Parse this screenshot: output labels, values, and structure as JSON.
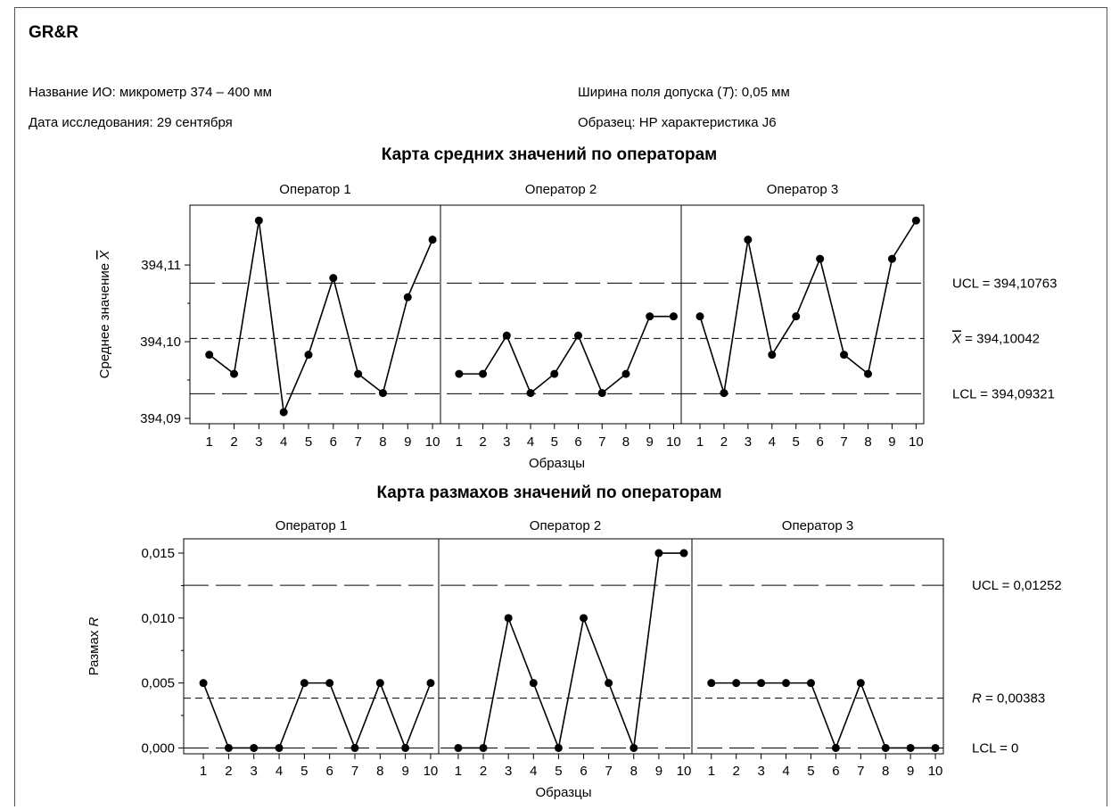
{
  "header": {
    "title": "GR&R",
    "instrument_label": "Название ИО: микрометр 374 – 400 мм",
    "date_label": "Дата исследования: 29 сентября",
    "tolerance_prefix": "Ширина поля допуска (",
    "tolerance_symbol": "T",
    "tolerance_suffix": "): 0,05 мм",
    "sample_label": "Образец: НР характеристика J6"
  },
  "chart_data": [
    {
      "type": "line",
      "title": "Карта средних значений по операторам",
      "ylabel_main": "Среднее значение ",
      "ylabel_symbol": "X",
      "xlabel": "Образцы",
      "panels": [
        "Оператор 1",
        "Оператор 2",
        "Оператор 3"
      ],
      "categories": [
        "1",
        "2",
        "3",
        "4",
        "5",
        "6",
        "7",
        "8",
        "9",
        "10"
      ],
      "y_ticks": [
        "394,09",
        "394,10",
        "394,11"
      ],
      "y_tick_values": [
        394.09,
        394.1,
        394.11
      ],
      "ylim": [
        394.0893,
        394.1178
      ],
      "series": [
        {
          "values": [
            394.0983,
            394.0958,
            394.1158,
            394.0908,
            394.0983,
            394.1083,
            394.0958,
            394.0933,
            394.1058,
            394.1133
          ]
        },
        {
          "values": [
            394.0958,
            394.0958,
            394.1008,
            394.0933,
            394.0958,
            394.1008,
            394.0933,
            394.0958,
            394.1033,
            394.1033
          ]
        },
        {
          "values": [
            394.1033,
            394.0933,
            394.1133,
            394.0983,
            394.1033,
            394.1108,
            394.0983,
            394.0958,
            394.1108,
            394.1158
          ]
        }
      ],
      "ucl": 394.10763,
      "center": 394.10042,
      "lcl": 394.09321,
      "ucl_label": "UCL = 394,10763",
      "center_symbol": "X",
      "center_label": " = 394,10042",
      "lcl_label": "LCL = 394,09321"
    },
    {
      "type": "line",
      "title": "Карта размахов значений по операторам",
      "ylabel_main": "Размах ",
      "ylabel_symbol": "R",
      "xlabel": "Образцы",
      "panels": [
        "Оператор 1",
        "Оператор 2",
        "Оператор 3"
      ],
      "categories": [
        "1",
        "2",
        "3",
        "4",
        "5",
        "6",
        "7",
        "8",
        "9",
        "10"
      ],
      "y_ticks": [
        "0,000",
        "0,005",
        "0,010",
        "0,015"
      ],
      "y_tick_values": [
        0,
        0.005,
        0.01,
        0.015
      ],
      "ylim": [
        -0.00045,
        0.0161
      ],
      "series": [
        {
          "values": [
            0.005,
            0,
            0,
            0,
            0.005,
            0.005,
            0,
            0.005,
            0,
            0.005
          ]
        },
        {
          "values": [
            0,
            0,
            0.01,
            0.005,
            0,
            0.01,
            0.005,
            0,
            0.015,
            0.015
          ]
        },
        {
          "values": [
            0.005,
            0.005,
            0.005,
            0.005,
            0.005,
            0,
            0.005,
            0,
            0,
            0
          ]
        }
      ],
      "ucl": 0.01252,
      "center": 0.00383,
      "lcl": 0,
      "ucl_label": "UCL = 0,01252",
      "center_symbol": "R",
      "center_label": " = 0,00383",
      "lcl_label": "LCL = 0"
    }
  ]
}
